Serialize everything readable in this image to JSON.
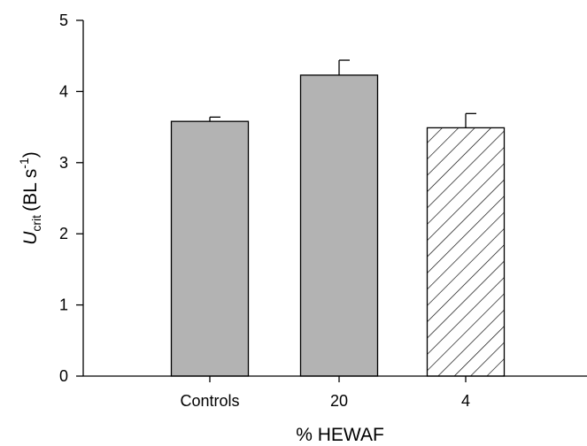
{
  "chart_data": {
    "type": "bar",
    "categories": [
      "Controls",
      "20",
      "4"
    ],
    "values": [
      3.58,
      4.23,
      3.49
    ],
    "errors": [
      0.06,
      0.21,
      0.2
    ],
    "fills": [
      "solid",
      "solid",
      "hatched"
    ],
    "bar_color": "#b3b3b3",
    "hatch_color": "#000000",
    "xlabel": "% HEWAF",
    "ylabel": {
      "symbol": "U",
      "subscript": "crit",
      "units": "(BL s",
      "superscript": "-1",
      "close": ")"
    },
    "ylim": [
      0,
      5
    ],
    "yticks": [
      "0",
      "1",
      "2",
      "3",
      "4",
      "5"
    ],
    "grid": false,
    "legend": "none"
  }
}
